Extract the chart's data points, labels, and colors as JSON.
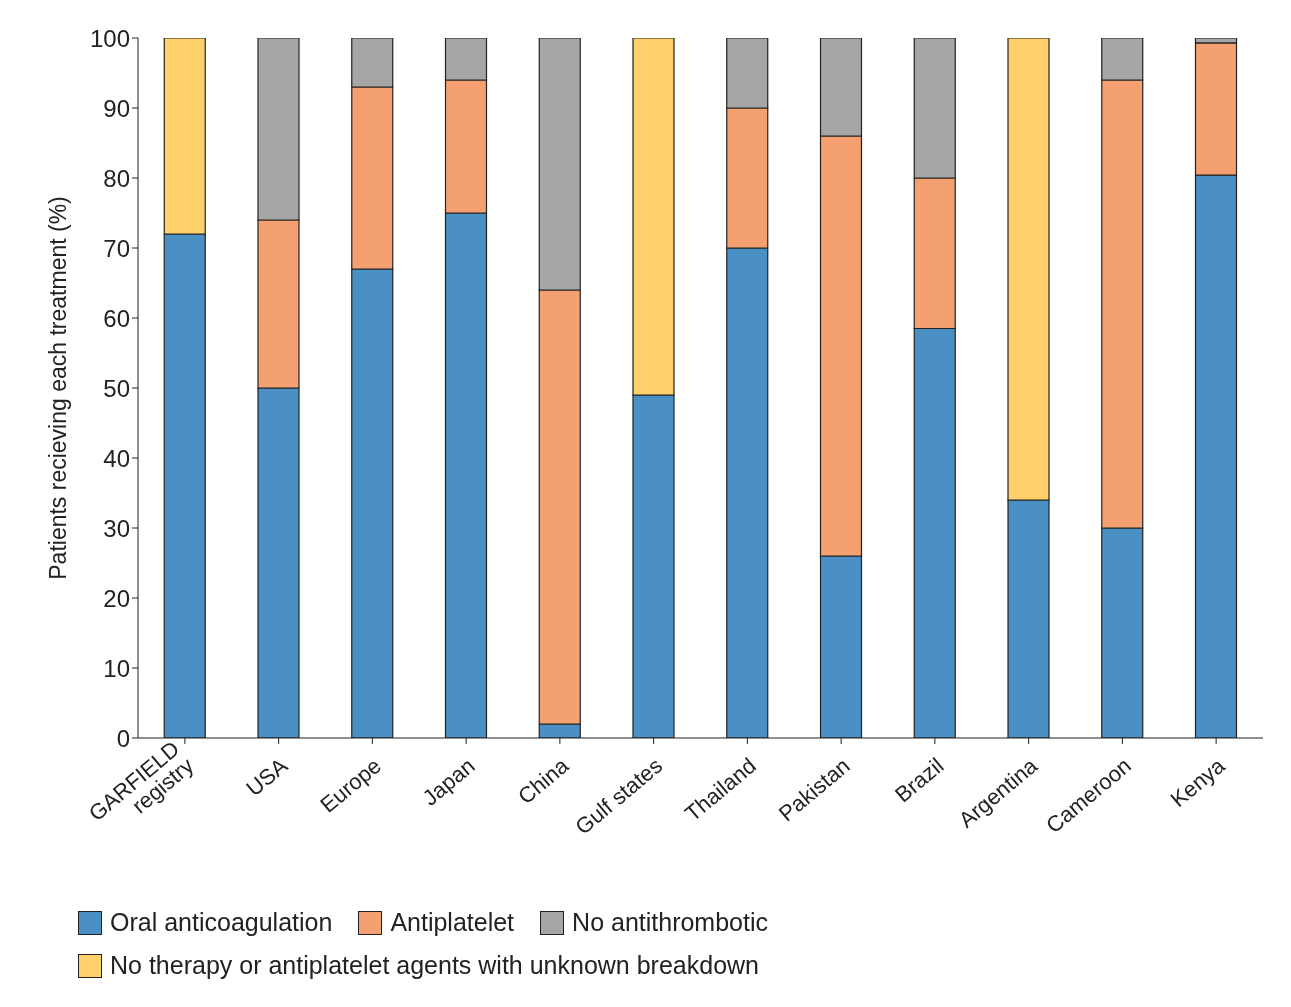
{
  "chart_data": {
    "type": "bar",
    "stacked": true,
    "ylabel": "Patients recieving each treatment (%)",
    "categories": [
      "GARFIELD\nregistry",
      "USA",
      "Europe",
      "Japan",
      "China",
      "Gulf states",
      "Thailand",
      "Pakistan",
      "Brazil",
      "Argentina",
      "Cameroon",
      "Kenya"
    ],
    "series": [
      {
        "name": "Oral anticoagulation",
        "color": "#4a90c4",
        "values": [
          72,
          50,
          67,
          75,
          2,
          49,
          70,
          26,
          58.5,
          34,
          30,
          80.4
        ]
      },
      {
        "name": "Antiplatelet",
        "color": "#f5a070",
        "values": [
          null,
          24,
          26,
          19,
          62,
          null,
          20,
          60,
          21.5,
          null,
          64,
          18.9
        ]
      },
      {
        "name": "No antithrombotic",
        "color": "#a6a6a6",
        "values": [
          null,
          26,
          7,
          6,
          36,
          null,
          10,
          14,
          20,
          null,
          6,
          0.7
        ]
      },
      {
        "name": "No therapy or antiplatelet agents with unknown breakdown",
        "color": "#fdd06a",
        "values": [
          28,
          null,
          null,
          null,
          null,
          51,
          null,
          null,
          null,
          66,
          null,
          null
        ]
      }
    ],
    "ylim": [
      0,
      100
    ],
    "yticks": [
      0,
      10,
      20,
      30,
      40,
      50,
      60,
      70,
      80,
      90,
      100
    ],
    "grid": false,
    "legend": "bottom"
  }
}
